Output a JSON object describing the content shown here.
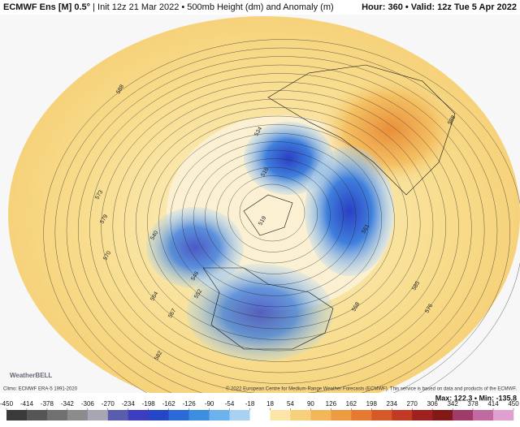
{
  "header": {
    "model": "ECMWF Ens [M] 0.5°",
    "subtitle": "| Init 12z 21 Mar 2022 • 500mb Height (dm) and Anomaly (m)",
    "hour": "Hour: 360 • Valid: 12z Tue 5 Apr 2022"
  },
  "map": {
    "contour_labels": [
      "588",
      "534",
      "516",
      "519",
      "540",
      "546",
      "552",
      "564",
      "567",
      "570",
      "573",
      "576",
      "579",
      "582",
      "585",
      "558",
      "561",
      "588"
    ]
  },
  "footer": {
    "climo": "Climo: ECMWF ERA-5 1991-2020",
    "copyright": "© 2022 European Centre for Medium-Range Weather Forecasts (ECMWF). This service is based on data and products of the ECMWF.",
    "logo": "WeatherBELL",
    "maxmin": "Max: 122.3 • Min: -135.8"
  },
  "colorbar": {
    "ticks": [
      -450,
      -414,
      -378,
      -342,
      -306,
      -270,
      -234,
      -198,
      -162,
      -126,
      -90,
      -54,
      -18,
      18,
      54,
      90,
      126,
      162,
      198,
      234,
      270,
      306,
      342,
      378,
      414,
      450
    ],
    "colors": [
      "#3a3a3a",
      "#555555",
      "#707070",
      "#8c8c8c",
      "#a6a6b4",
      "#5c5cae",
      "#3d3dc0",
      "#2447c8",
      "#2a6ad6",
      "#3c8fe0",
      "#6cb2ec",
      "#a8d2f4",
      "#ffffff",
      "#fbe6a8",
      "#f6d07a",
      "#f3b75a",
      "#ee9a40",
      "#e57a30",
      "#d65a28",
      "#c23a24",
      "#a02020",
      "#821818",
      "#a03a6a",
      "#c06aa0",
      "#e0a0d0"
    ]
  }
}
